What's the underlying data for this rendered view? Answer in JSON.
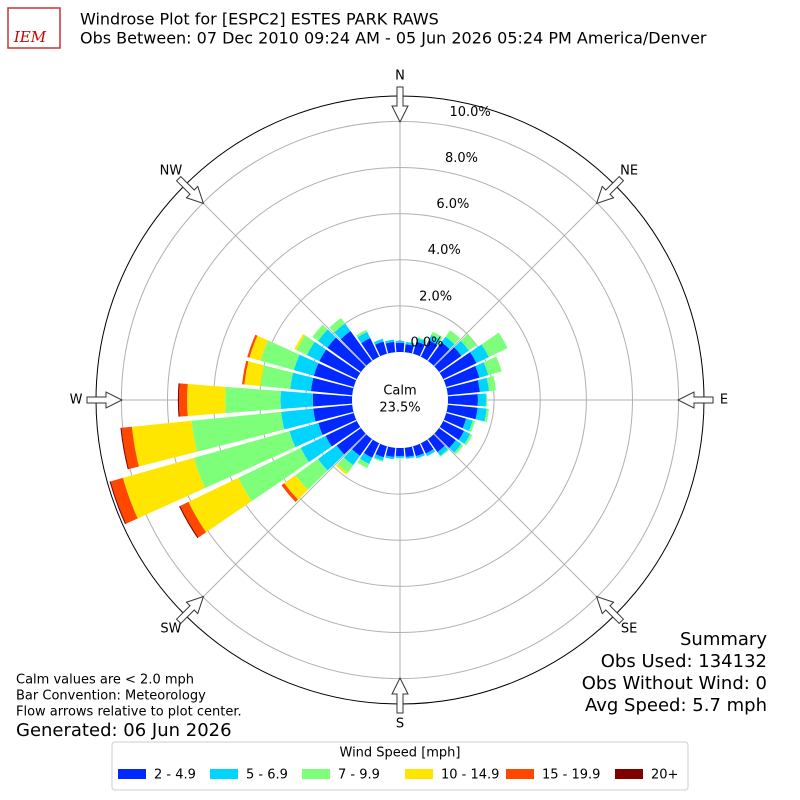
{
  "chart_data": {
    "type": "windrose",
    "logo_text": "IEM",
    "title": "Windrose Plot for [ESPC2] ESTES PARK RAWS",
    "subtitle": "Obs Between: 07 Dec 2010 09:24 AM - 05 Jun 2026 05:24 PM America/Denver",
    "compass_labels": [
      "N",
      "NE",
      "E",
      "SE",
      "S",
      "SW",
      "W",
      "NW"
    ],
    "x": [
      0,
      10,
      20,
      30,
      40,
      50,
      60,
      70,
      80,
      90,
      100,
      110,
      120,
      130,
      140,
      150,
      160,
      170,
      180,
      190,
      200,
      210,
      220,
      230,
      240,
      250,
      260,
      270,
      280,
      290,
      300,
      310,
      320,
      330,
      340,
      350
    ],
    "rlim": [
      0,
      11.1
    ],
    "rticks": [
      {
        "value": 0,
        "label": "0.0%"
      },
      {
        "value": 2,
        "label": "2.0%"
      },
      {
        "value": 4,
        "label": "4.0%"
      },
      {
        "value": 6,
        "label": "6.0%"
      },
      {
        "value": 8,
        "label": "8.0%"
      },
      {
        "value": 10,
        "label": "10.0%"
      }
    ],
    "grid": true,
    "calm_text": "Calm",
    "calm_value": 23.5,
    "calm_value_label": "23.5%",
    "legend_title": "Wind Speed [mph]",
    "series": [
      {
        "name": "2 - 4.9",
        "color": "#0028ff",
        "values": [
          0.4,
          0.35,
          0.55,
          0.8,
          1.0,
          1.2,
          1.6,
          1.5,
          1.4,
          1.3,
          1.3,
          0.9,
          1.0,
          0.9,
          0.7,
          0.5,
          0.45,
          0.4,
          0.35,
          0.4,
          0.5,
          0.7,
          0.9,
          1.3,
          1.5,
          1.6,
          1.7,
          1.7,
          1.8,
          1.8,
          1.8,
          1.8,
          1.6,
          0.9,
          0.55,
          0.45
        ]
      },
      {
        "name": "5 - 6.9",
        "color": "#00d4ff",
        "values": [
          0.08,
          0.1,
          0.15,
          0.25,
          0.3,
          0.4,
          0.6,
          0.4,
          0.4,
          0.35,
          0.4,
          0.3,
          0.3,
          0.3,
          0.2,
          0.12,
          0.1,
          0.08,
          0.08,
          0.1,
          0.15,
          0.3,
          0.5,
          1.0,
          1.2,
          1.3,
          1.4,
          1.4,
          0.9,
          0.9,
          0.6,
          0.5,
          0.4,
          0.3,
          0.12,
          0.1
        ]
      },
      {
        "name": "7 - 9.9",
        "color": "#7dff7a",
        "values": [
          0,
          0,
          0.05,
          0.15,
          0.35,
          0.4,
          0.9,
          0.6,
          0.3,
          0.05,
          0.1,
          0.1,
          0.1,
          0.1,
          0.05,
          0,
          0,
          0,
          0.02,
          0,
          0.05,
          0.2,
          0.4,
          1.2,
          3.0,
          4.3,
          3.9,
          2.4,
          1.3,
          1.5,
          0.5,
          0.3,
          0.3,
          0.1,
          0,
          0
        ]
      },
      {
        "name": "10 - 14.9",
        "color": "#ffe600",
        "values": [
          0,
          0,
          0,
          0,
          0,
          0,
          0,
          0,
          0,
          0,
          0,
          0,
          0,
          0,
          0,
          0,
          0,
          0,
          0,
          0,
          0,
          0,
          0.1,
          0.6,
          2.4,
          3.2,
          2.6,
          1.65,
          0.7,
          0.5,
          0.1,
          0,
          0,
          0,
          0,
          0
        ]
      },
      {
        "name": "15 - 19.9",
        "color": "#ff4700",
        "values": [
          0,
          0,
          0,
          0,
          0,
          0,
          0,
          0,
          0,
          0,
          0,
          0,
          0,
          0,
          0,
          0,
          0,
          0,
          0,
          0,
          0,
          0,
          0,
          0.15,
          0.4,
          0.55,
          0.45,
          0.35,
          0.1,
          0.1,
          0,
          0,
          0,
          0,
          0,
          0
        ]
      },
      {
        "name": "20+",
        "color": "#800000",
        "values": [
          0,
          0,
          0,
          0,
          0,
          0,
          0,
          0,
          0,
          0,
          0,
          0,
          0,
          0,
          0,
          0,
          0,
          0,
          0,
          0,
          0,
          0,
          0,
          0,
          0.05,
          0.05,
          0.05,
          0.05,
          0,
          0,
          0,
          0,
          0,
          0,
          0,
          0
        ]
      }
    ],
    "summary": [
      "Summary",
      "Obs Used: 134132",
      "Obs Without Wind: 0",
      "Avg Speed: 5.7 mph"
    ],
    "notes": [
      "Calm values are < 2.0 mph",
      "Bar Convention: Meteorology",
      "Flow arrows relative to plot center."
    ],
    "generated": "Generated: 06 Jun 2026"
  }
}
